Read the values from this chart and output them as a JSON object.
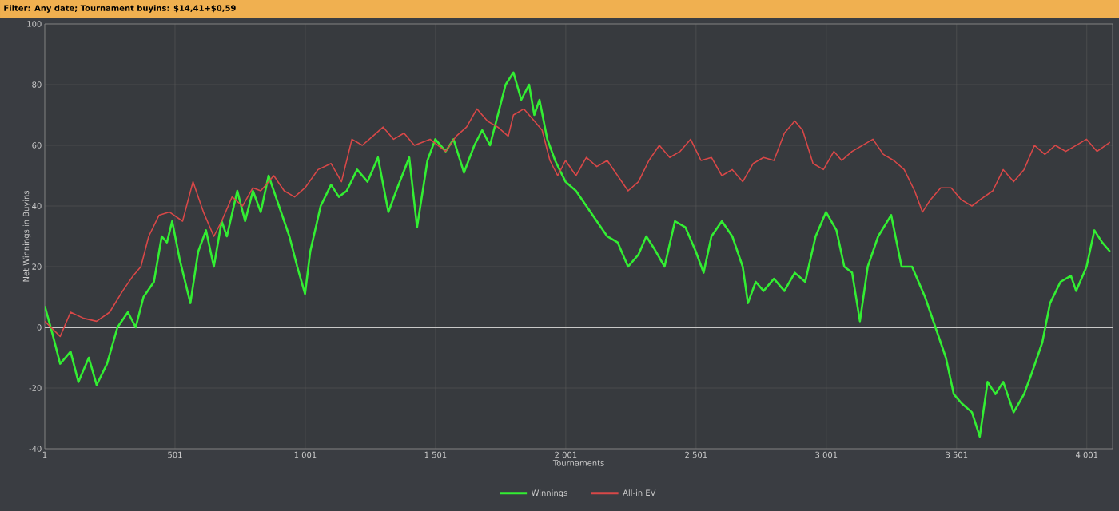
{
  "chart_data": {
    "type": "line",
    "title": "Filter: Any date; Tournament buyins: $14,41+$0,59",
    "xlabel": "Tournaments",
    "ylabel": "Net Winnings in Buyins",
    "xlim": [
      1,
      4100
    ],
    "ylim": [
      -40,
      100
    ],
    "xticks": [
      1,
      501,
      {
        "value": 1001,
        "label": "1 001"
      },
      {
        "value": 1501,
        "label": "1 501"
      },
      {
        "value": 2001,
        "label": "2 001"
      },
      {
        "value": 2501,
        "label": "2 501"
      },
      {
        "value": 3001,
        "label": "3 001"
      },
      {
        "value": 3501,
        "label": "3 501"
      },
      {
        "value": 4001,
        "label": "4 001"
      }
    ],
    "yticks": [
      -40,
      -20,
      0,
      20,
      40,
      60,
      80,
      100
    ],
    "grid": true,
    "legend": "bottom",
    "marker": "none",
    "line_style": "solid",
    "ref_lines": [
      {
        "axis": "y",
        "value": 0,
        "color": "#c8c8c8"
      }
    ],
    "series": [
      {
        "name": "Winnings",
        "color": "#33ee33",
        "x": [
          1,
          30,
          60,
          100,
          130,
          170,
          200,
          240,
          280,
          320,
          350,
          380,
          420,
          450,
          470,
          490,
          520,
          560,
          590,
          620,
          650,
          680,
          700,
          740,
          770,
          800,
          830,
          860,
          900,
          940,
          970,
          1000,
          1020,
          1060,
          1100,
          1130,
          1160,
          1200,
          1240,
          1280,
          1320,
          1350,
          1400,
          1430,
          1470,
          1500,
          1540,
          1570,
          1610,
          1650,
          1680,
          1710,
          1740,
          1770,
          1800,
          1830,
          1860,
          1880,
          1900,
          1930,
          1960,
          2000,
          2040,
          2080,
          2120,
          2160,
          2200,
          2240,
          2280,
          2310,
          2340,
          2380,
          2420,
          2460,
          2500,
          2530,
          2560,
          2600,
          2640,
          2680,
          2700,
          2730,
          2760,
          2800,
          2840,
          2880,
          2920,
          2960,
          3000,
          3040,
          3070,
          3100,
          3130,
          3160,
          3200,
          3250,
          3290,
          3330,
          3380,
          3420,
          3460,
          3490,
          3520,
          3560,
          3590,
          3620,
          3650,
          3680,
          3720,
          3760,
          3790,
          3830,
          3860,
          3900,
          3940,
          3960,
          4000,
          4030,
          4060,
          4090
        ],
        "values": [
          7,
          -2,
          -12,
          -8,
          -18,
          -10,
          -19,
          -12,
          0,
          5,
          0,
          10,
          15,
          30,
          28,
          35,
          22,
          8,
          25,
          32,
          20,
          35,
          30,
          45,
          35,
          45,
          38,
          50,
          40,
          30,
          20,
          11,
          25,
          40,
          47,
          43,
          45,
          52,
          48,
          56,
          38,
          45,
          56,
          33,
          55,
          62,
          58,
          62,
          51,
          60,
          65,
          60,
          70,
          80,
          84,
          75,
          80,
          70,
          75,
          62,
          55,
          48,
          45,
          40,
          35,
          30,
          28,
          20,
          24,
          30,
          26,
          20,
          35,
          33,
          25,
          18,
          30,
          35,
          30,
          20,
          8,
          15,
          12,
          16,
          12,
          18,
          15,
          30,
          38,
          32,
          20,
          18,
          2,
          20,
          30,
          37,
          20,
          20,
          10,
          0,
          -10,
          -22,
          -25,
          -28,
          -36,
          -18,
          -22,
          -18,
          -28,
          -22,
          -15,
          -5,
          8,
          15,
          17,
          12,
          20,
          32,
          28,
          25
        ]
      },
      {
        "name": "All-in EV",
        "color": "#d84848",
        "x": [
          1,
          60,
          100,
          150,
          200,
          250,
          300,
          340,
          370,
          400,
          440,
          480,
          530,
          570,
          610,
          650,
          680,
          720,
          760,
          800,
          830,
          880,
          920,
          960,
          1000,
          1050,
          1100,
          1140,
          1180,
          1220,
          1260,
          1300,
          1340,
          1380,
          1420,
          1480,
          1540,
          1580,
          1620,
          1660,
          1700,
          1740,
          1780,
          1800,
          1840,
          1880,
          1910,
          1940,
          1970,
          2000,
          2040,
          2080,
          2120,
          2160,
          2200,
          2240,
          2280,
          2320,
          2360,
          2400,
          2440,
          2480,
          2520,
          2560,
          2600,
          2640,
          2680,
          2720,
          2760,
          2800,
          2840,
          2880,
          2910,
          2950,
          2990,
          3030,
          3060,
          3100,
          3140,
          3180,
          3220,
          3260,
          3300,
          3340,
          3370,
          3400,
          3440,
          3480,
          3520,
          3560,
          3590,
          3640,
          3680,
          3720,
          3760,
          3800,
          3840,
          3880,
          3920,
          3960,
          4000,
          4040,
          4090
        ],
        "values": [
          2,
          -3,
          5,
          3,
          2,
          5,
          12,
          17,
          20,
          30,
          37,
          38,
          35,
          48,
          38,
          30,
          35,
          43,
          40,
          46,
          45,
          50,
          45,
          43,
          46,
          52,
          54,
          48,
          62,
          60,
          63,
          66,
          62,
          64,
          60,
          62,
          58,
          63,
          66,
          72,
          68,
          66,
          63,
          70,
          72,
          68,
          65,
          55,
          50,
          55,
          50,
          56,
          53,
          55,
          50,
          45,
          48,
          55,
          60,
          56,
          58,
          62,
          55,
          56,
          50,
          52,
          48,
          54,
          56,
          55,
          64,
          68,
          65,
          54,
          52,
          58,
          55,
          58,
          60,
          62,
          57,
          55,
          52,
          45,
          38,
          42,
          46,
          46,
          42,
          40,
          42,
          45,
          52,
          48,
          52,
          60,
          57,
          60,
          58,
          60,
          62,
          58,
          61
        ]
      }
    ]
  }
}
